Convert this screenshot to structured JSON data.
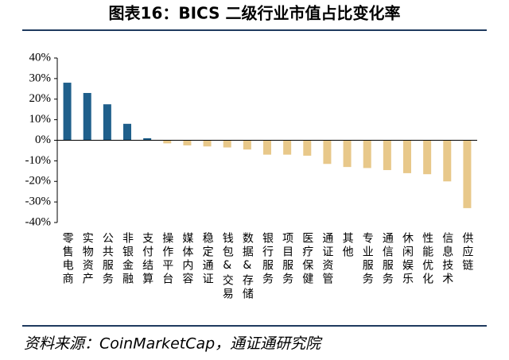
{
  "chart_data": {
    "type": "bar",
    "title": "图表16：BICS 二级行业市值占比变化率",
    "source": "资料来源：CoinMarketCap，通证通研究院",
    "categories": [
      "零售电商",
      "实物资产",
      "公共服务",
      "非银金融",
      "支付结算",
      "操作平台",
      "媒体内容",
      "稳定通证",
      "钱包&交易",
      "数据&存储",
      "银行服务",
      "项目服务",
      "医疗保健",
      "通证资管",
      "其他",
      "专业服务",
      "通信服务",
      "休闲娱乐",
      "性能优化",
      "信息技术",
      "供应链"
    ],
    "values": [
      28,
      23,
      17.5,
      8,
      1,
      -1.5,
      -2.5,
      -3,
      -3.5,
      -4.5,
      -7,
      -7,
      -7.5,
      -11.5,
      -13,
      -13.5,
      -14.5,
      -16,
      -16.5,
      -20,
      -33
    ],
    "positive_color": "#1f5f8b",
    "negative_color": "#e8c88a",
    "ylim": [
      -40,
      40
    ],
    "yticks": [
      {
        "value": -40,
        "label": "-40%"
      },
      {
        "value": -30,
        "label": "-30%"
      },
      {
        "value": -20,
        "label": "-20%"
      },
      {
        "value": -10,
        "label": "-10%"
      },
      {
        "value": 0,
        "label": "0%"
      },
      {
        "value": 10,
        "label": "10%"
      },
      {
        "value": 20,
        "label": "20%"
      },
      {
        "value": 30,
        "label": "30%"
      },
      {
        "value": 40,
        "label": "40%"
      }
    ],
    "grid": false
  }
}
